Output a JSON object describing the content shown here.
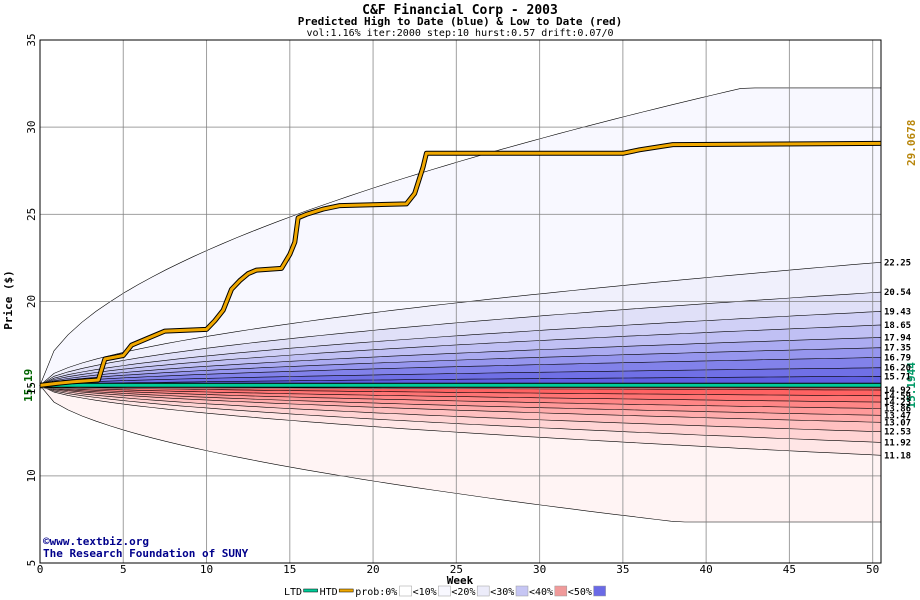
{
  "chart_data": {
    "type": "area",
    "title": "C&F Financial Corp - 2003",
    "subtitle": "Predicted High to Date (blue) &  Low to Date (red)",
    "params": "vol:1.16% iter:2000 step:10 hurst:0.57 drift:0.07/0",
    "xlabel": "Week",
    "ylabel": "Price ($)",
    "xlim": [
      0,
      50.5
    ],
    "ylim": [
      5,
      35
    ],
    "x_ticks": [
      0,
      5,
      10,
      15,
      20,
      25,
      30,
      35,
      40,
      45,
      50
    ],
    "y_ticks": [
      5,
      10,
      15,
      20,
      25,
      30,
      35
    ],
    "start_price": 15.19,
    "start_price_label": "15.19",
    "grid": true,
    "high_bands": [
      {
        "level": 22.25,
        "label": "22.25",
        "color": "#f0f0fc"
      },
      {
        "level": 20.54,
        "label": "20.54",
        "color": "#e0e0f8"
      },
      {
        "level": 19.43,
        "label": "19.43",
        "color": "#d0d0f6"
      },
      {
        "level": 18.65,
        "label": "18.65",
        "color": "#c0c0f4"
      },
      {
        "level": 17.94,
        "label": "17.94",
        "color": "#ababf1"
      },
      {
        "level": 17.35,
        "label": "17.35",
        "color": "#9696ee"
      },
      {
        "level": 16.79,
        "label": "16.79",
        "color": "#8282ea"
      },
      {
        "level": 16.2,
        "label": "16.20",
        "color": "#7070e6"
      },
      {
        "level": 15.71,
        "label": "15.71",
        "color": "#6060e2"
      }
    ],
    "high_outer": 32.25,
    "low_bands": [
      {
        "level": 14.92,
        "label": "14.92",
        "color": "#ff5050"
      },
      {
        "level": 14.59,
        "label": "14.59",
        "color": "#ff6262"
      },
      {
        "level": 14.23,
        "label": "14.23",
        "color": "#ff7474"
      },
      {
        "level": 13.86,
        "label": "13.86",
        "color": "#ff8686"
      },
      {
        "level": 13.47,
        "label": "13.47",
        "color": "#ff9a9a"
      },
      {
        "level": 13.07,
        "label": "13.07",
        "color": "#ffacac"
      },
      {
        "level": 12.53,
        "label": "12.53",
        "color": "#ffc0c0"
      },
      {
        "level": 11.92,
        "label": "11.92",
        "color": "#ffd4d4"
      },
      {
        "level": 11.18,
        "label": "11.18",
        "color": "#ffe6e6"
      }
    ],
    "low_outer": 7.35,
    "ltd": {
      "name": "LTD",
      "value": 15.1944,
      "label": "15.1944",
      "color": "#00cc99"
    },
    "htd": {
      "name": "HTD",
      "color": "#f0a800",
      "final_label": "29.0678",
      "points": [
        [
          0,
          15.19
        ],
        [
          1,
          15.3
        ],
        [
          2,
          15.4
        ],
        [
          3.5,
          15.5
        ],
        [
          3.9,
          16.7
        ],
        [
          5,
          16.9
        ],
        [
          5.5,
          17.5
        ],
        [
          6.5,
          17.9
        ],
        [
          7.5,
          18.3
        ],
        [
          10,
          18.4
        ],
        [
          10.5,
          18.9
        ],
        [
          11,
          19.5
        ],
        [
          11.5,
          20.7
        ],
        [
          12,
          21.2
        ],
        [
          12.5,
          21.6
        ],
        [
          13,
          21.8
        ],
        [
          14.5,
          21.9
        ],
        [
          15,
          22.7
        ],
        [
          15.3,
          23.4
        ],
        [
          15.5,
          24.8
        ],
        [
          16,
          25.0
        ],
        [
          17,
          25.3
        ],
        [
          18,
          25.5
        ],
        [
          22,
          25.6
        ],
        [
          22.5,
          26.2
        ],
        [
          23,
          27.7
        ],
        [
          23.2,
          28.5
        ],
        [
          30,
          28.5
        ],
        [
          35,
          28.5
        ],
        [
          36,
          28.7
        ],
        [
          38,
          29.0
        ],
        [
          50.5,
          29.07
        ]
      ]
    },
    "legend": {
      "items": [
        "LTD",
        "HTD",
        "prob:0%",
        "<10%",
        "<20%",
        "<30%",
        "<40%",
        "<50%"
      ],
      "swatch_colors": [
        "#ffffff",
        "#f8f8ff",
        "#ececfa",
        "#c6c6f4",
        "#f09a9a",
        "#6a6ae6"
      ]
    }
  },
  "credits": {
    "url": "©www.textbiz.org",
    "org": "The Research Foundation of SUNY"
  }
}
